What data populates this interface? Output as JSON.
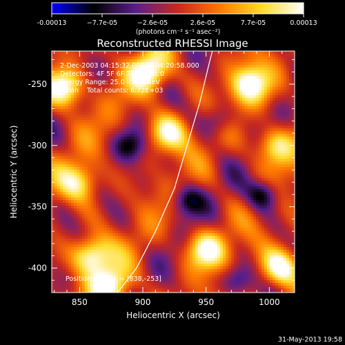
{
  "colorbar": {
    "ticks": [
      "-0.00013",
      "−7.7e-05",
      "−2.6e-05",
      "2.6e-05",
      "7.7e-05",
      "0.00013"
    ],
    "unit_label": "(photons cm⁻² s⁻¹ asec⁻²)",
    "range": [
      -0.00013,
      0.00013
    ],
    "colormap": [
      "#0000ff",
      "#000000",
      "#5a1e8c",
      "#c8281e",
      "#ff7800",
      "#ffdc28",
      "#ffffff"
    ]
  },
  "chart_data": {
    "type": "heatmap",
    "title": "Reconstructed RHESSI Image",
    "xlabel": "Heliocentric X (arcsec)",
    "ylabel": "Heliocentric Y (arcsec)",
    "xlim": [
      828,
      1020
    ],
    "ylim": [
      -420,
      -223
    ],
    "xticks": [
      "850",
      "900",
      "950",
      "1000"
    ],
    "xtick_values": [
      850,
      900,
      950,
      1000
    ],
    "yticks": [
      "-250",
      "-300",
      "-350",
      "-400"
    ],
    "ytick_values": [
      -250,
      -300,
      -350,
      -400
    ],
    "annotations": [
      "2-Dec-2003 04:15:32.000 to 04:20:58.000",
      "Detectors: 4F 5F 6F 7F 8F, Att 0",
      "Energy Range: 25.0 - 50.0 keV",
      "Clean    Total counts: 6.72E+03"
    ],
    "peak_label": "Position of Peak = [838,-253]",
    "peak": [
      838,
      -253
    ],
    "limb_curve": [
      [
        880,
        -420
      ],
      [
        895,
        -400
      ],
      [
        910,
        -370
      ],
      [
        925,
        -335
      ],
      [
        935,
        -300
      ],
      [
        945,
        -265
      ],
      [
        952,
        -235
      ],
      [
        955,
        -223
      ]
    ],
    "bright_sources": [
      {
        "x": 838,
        "y": -253,
        "level": 1.0
      },
      {
        "x": 860,
        "y": -390,
        "level": 0.95
      },
      {
        "x": 875,
        "y": -415,
        "level": 0.85
      },
      {
        "x": 985,
        "y": -250,
        "level": 0.9
      },
      {
        "x": 1010,
        "y": -400,
        "level": 0.95
      },
      {
        "x": 920,
        "y": -290,
        "level": 0.8
      },
      {
        "x": 950,
        "y": -385,
        "level": 0.85
      },
      {
        "x": 905,
        "y": -240,
        "level": 0.9
      },
      {
        "x": 850,
        "y": -330,
        "level": 0.7
      },
      {
        "x": 1005,
        "y": -300,
        "level": 0.75
      }
    ],
    "dim_regions": [
      {
        "x": 995,
        "y": -340,
        "level": -0.8
      },
      {
        "x": 935,
        "y": -345,
        "level": -0.7
      },
      {
        "x": 890,
        "y": -300,
        "level": -0.6
      },
      {
        "x": 960,
        "y": -280,
        "level": -0.5
      },
      {
        "x": 975,
        "y": -410,
        "level": -0.6
      }
    ]
  },
  "footer": {
    "date": "31-May-2013 19:58"
  }
}
